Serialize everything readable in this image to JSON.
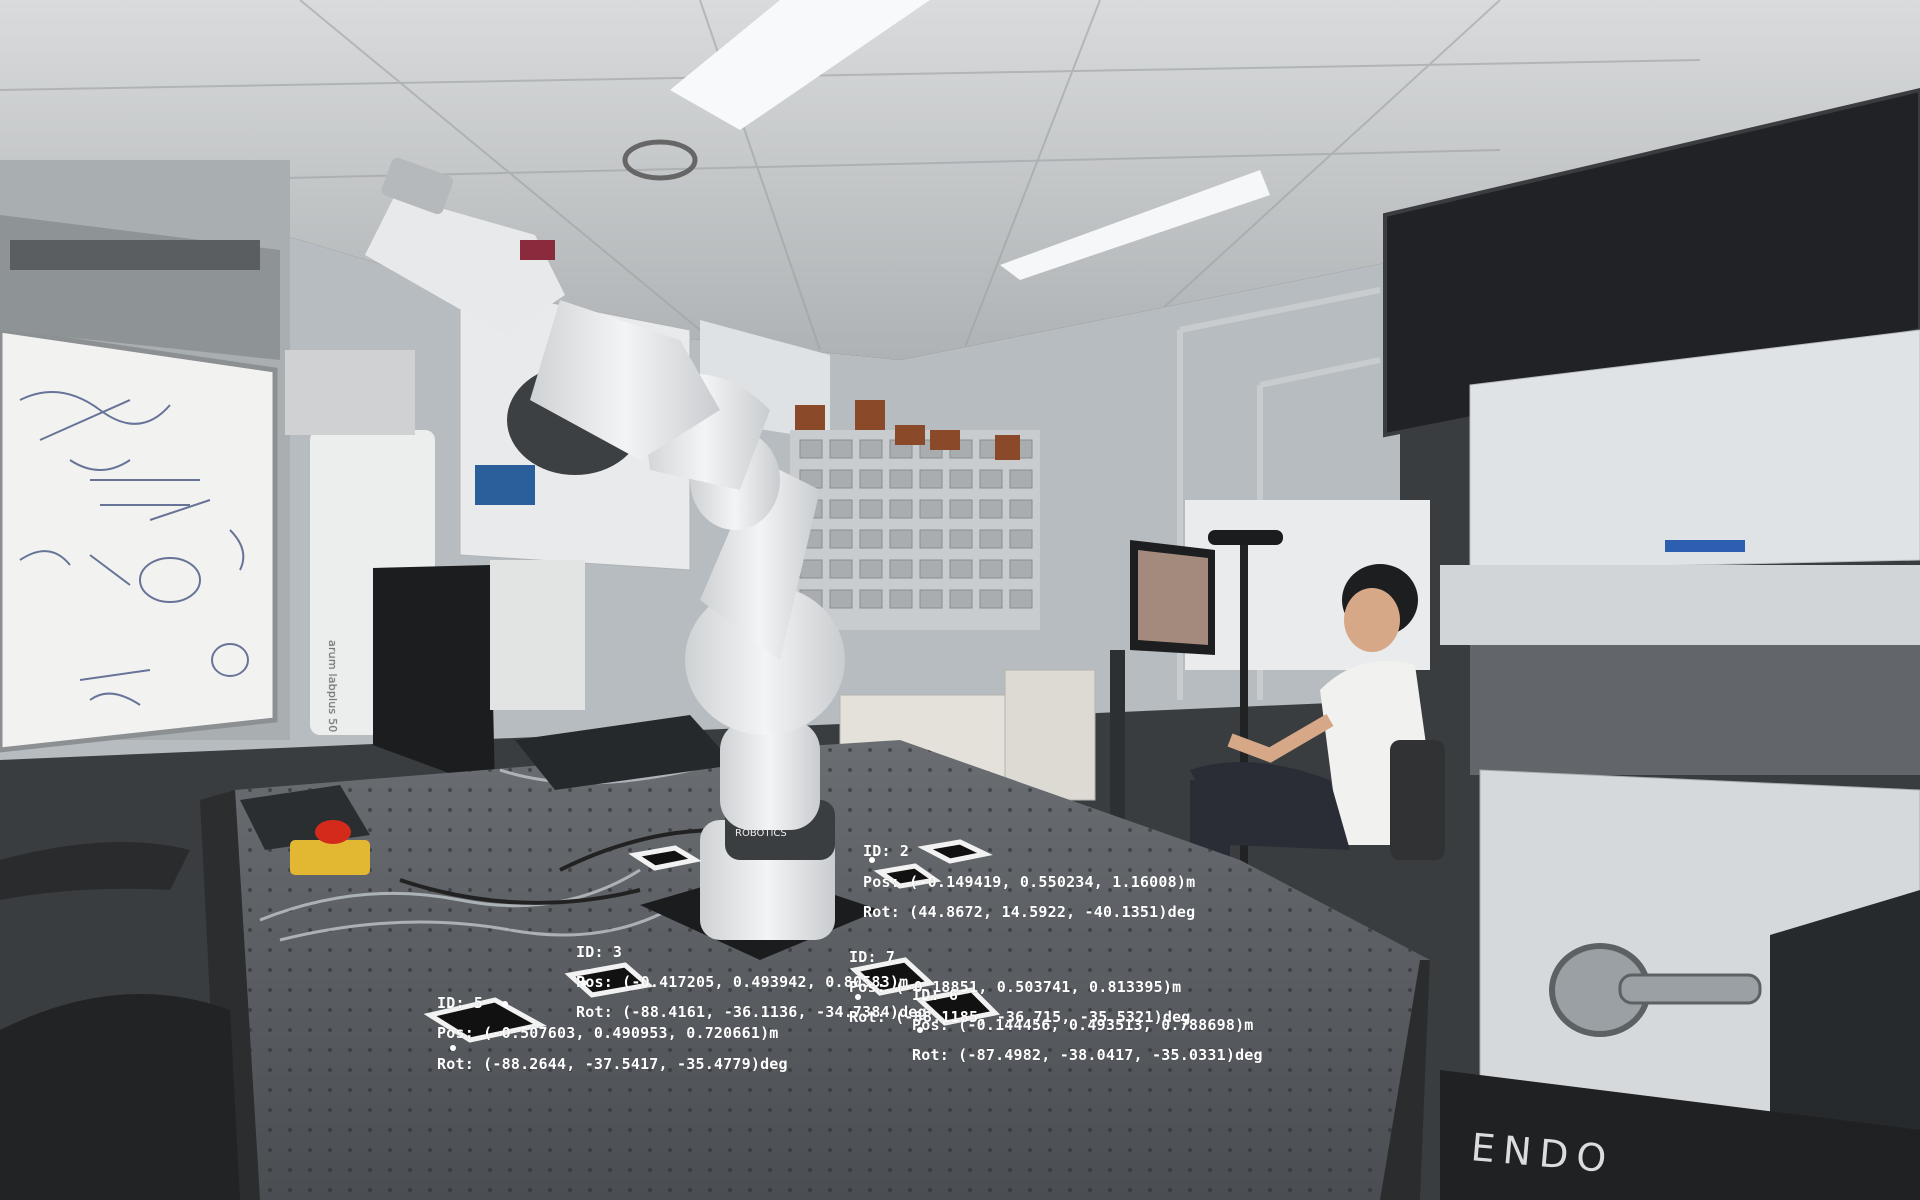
{
  "photo": {
    "device_labels": {
      "endo": "ENDO",
      "arm_brand": "ROBOTICS",
      "fridge": "arum labplus 50"
    }
  },
  "markers": [
    {
      "id_label": "ID: 2",
      "pos": "Pos: (-0.149419, 0.550234, 1.16008)m",
      "rot": "Rot: (44.8672, 14.5922, -40.1351)deg"
    },
    {
      "id_label": "ID: 3",
      "pos": "Pos: (-0.417205, 0.493942, 0.80583)m",
      "rot": "Rot: (-88.4161, -36.1136, -34.7384)deg"
    },
    {
      "id_label": "ID: 7",
      "pos": "Pos: (-0.18851, 0.503741, 0.813395)m",
      "rot": "Rot: (-88.1185, -36.715, -35.5321)deg"
    },
    {
      "id_label": "ID: 6",
      "pos": "Pos: (-0.144456, 0.493513, 0.788698)m",
      "rot": "Rot: (-87.4982, -38.0417, -35.0331)deg"
    },
    {
      "id_label": "ID: 5",
      "pos": "Pos: (-0.507603, 0.490953, 0.720661)m",
      "rot": "Rot: (-88.2644, -37.5417, -35.4779)deg"
    }
  ],
  "colors": {
    "overlay_text": "#ffffff",
    "table": "#5b5f63",
    "robot": "#ecedee",
    "estop": "#d42a1c"
  }
}
